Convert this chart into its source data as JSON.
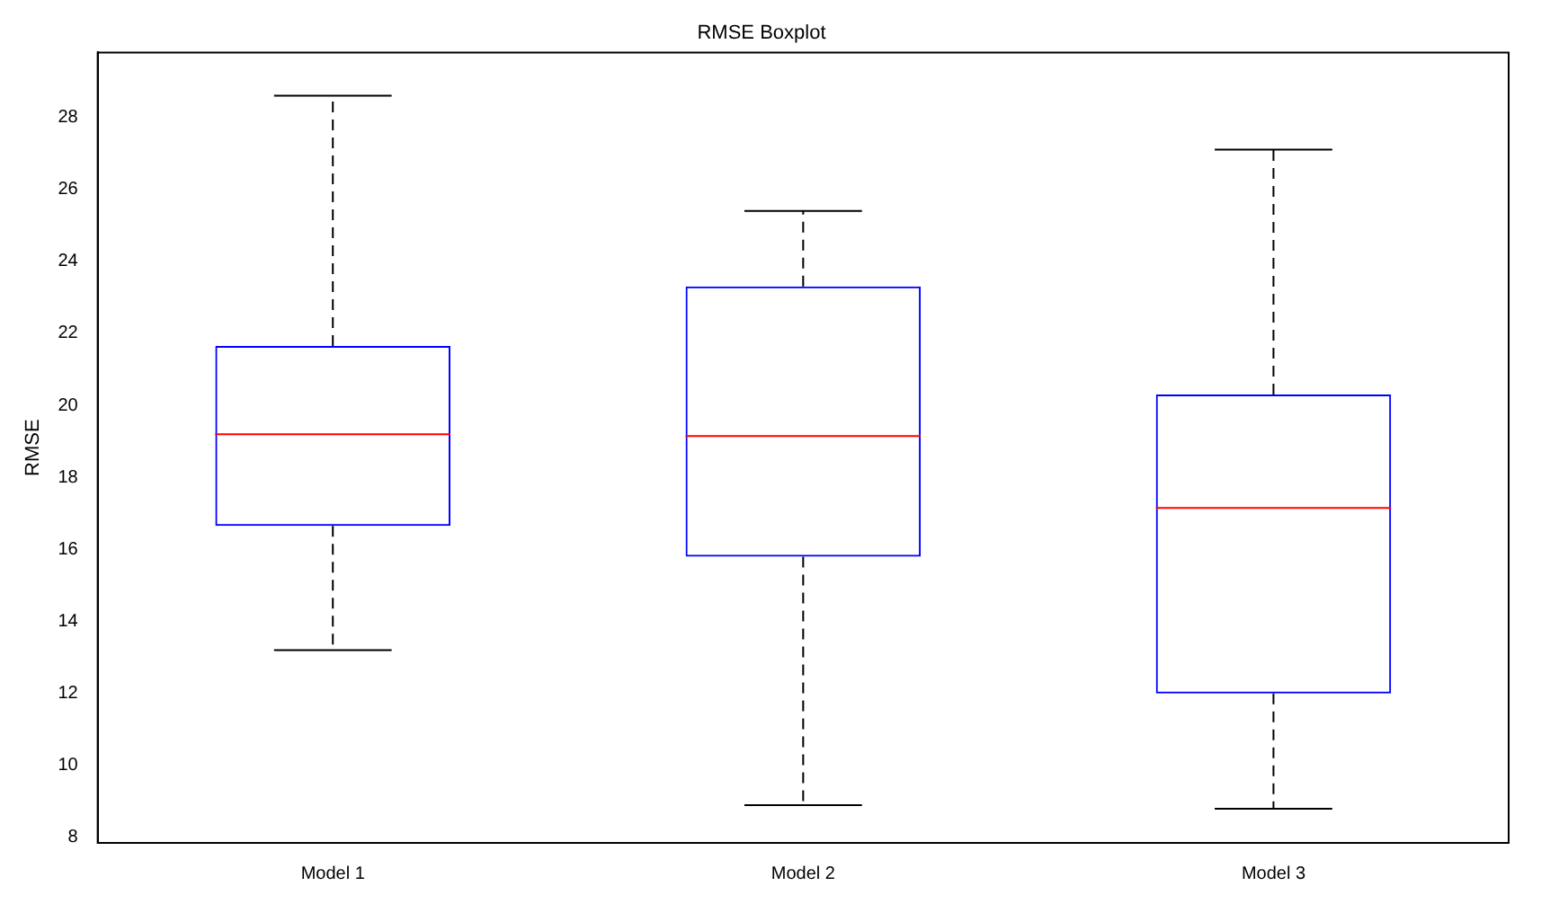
{
  "chart_data": {
    "type": "box",
    "title": "RMSE Boxplot",
    "ylabel": "RMSE",
    "categories": [
      "Model 1",
      "Model 2",
      "Model 3"
    ],
    "series": [
      {
        "color": "#0000ff",
        "boxes": [
          {
            "low": 13.2,
            "q1": 16.65,
            "median": 19.2,
            "q3": 21.65,
            "high": 28.6
          },
          {
            "low": 8.9,
            "q1": 15.8,
            "median": 19.15,
            "q3": 23.3,
            "high": 25.4
          },
          {
            "low": 8.8,
            "q1": 12.0,
            "median": 17.15,
            "q3": 20.3,
            "high": 27.1
          }
        ]
      }
    ],
    "ylim": [
      7.85,
      29.8
    ],
    "yticks": [
      8,
      10,
      12,
      14,
      16,
      18,
      20,
      22,
      24,
      26,
      28
    ],
    "grid": false,
    "legend": false
  }
}
